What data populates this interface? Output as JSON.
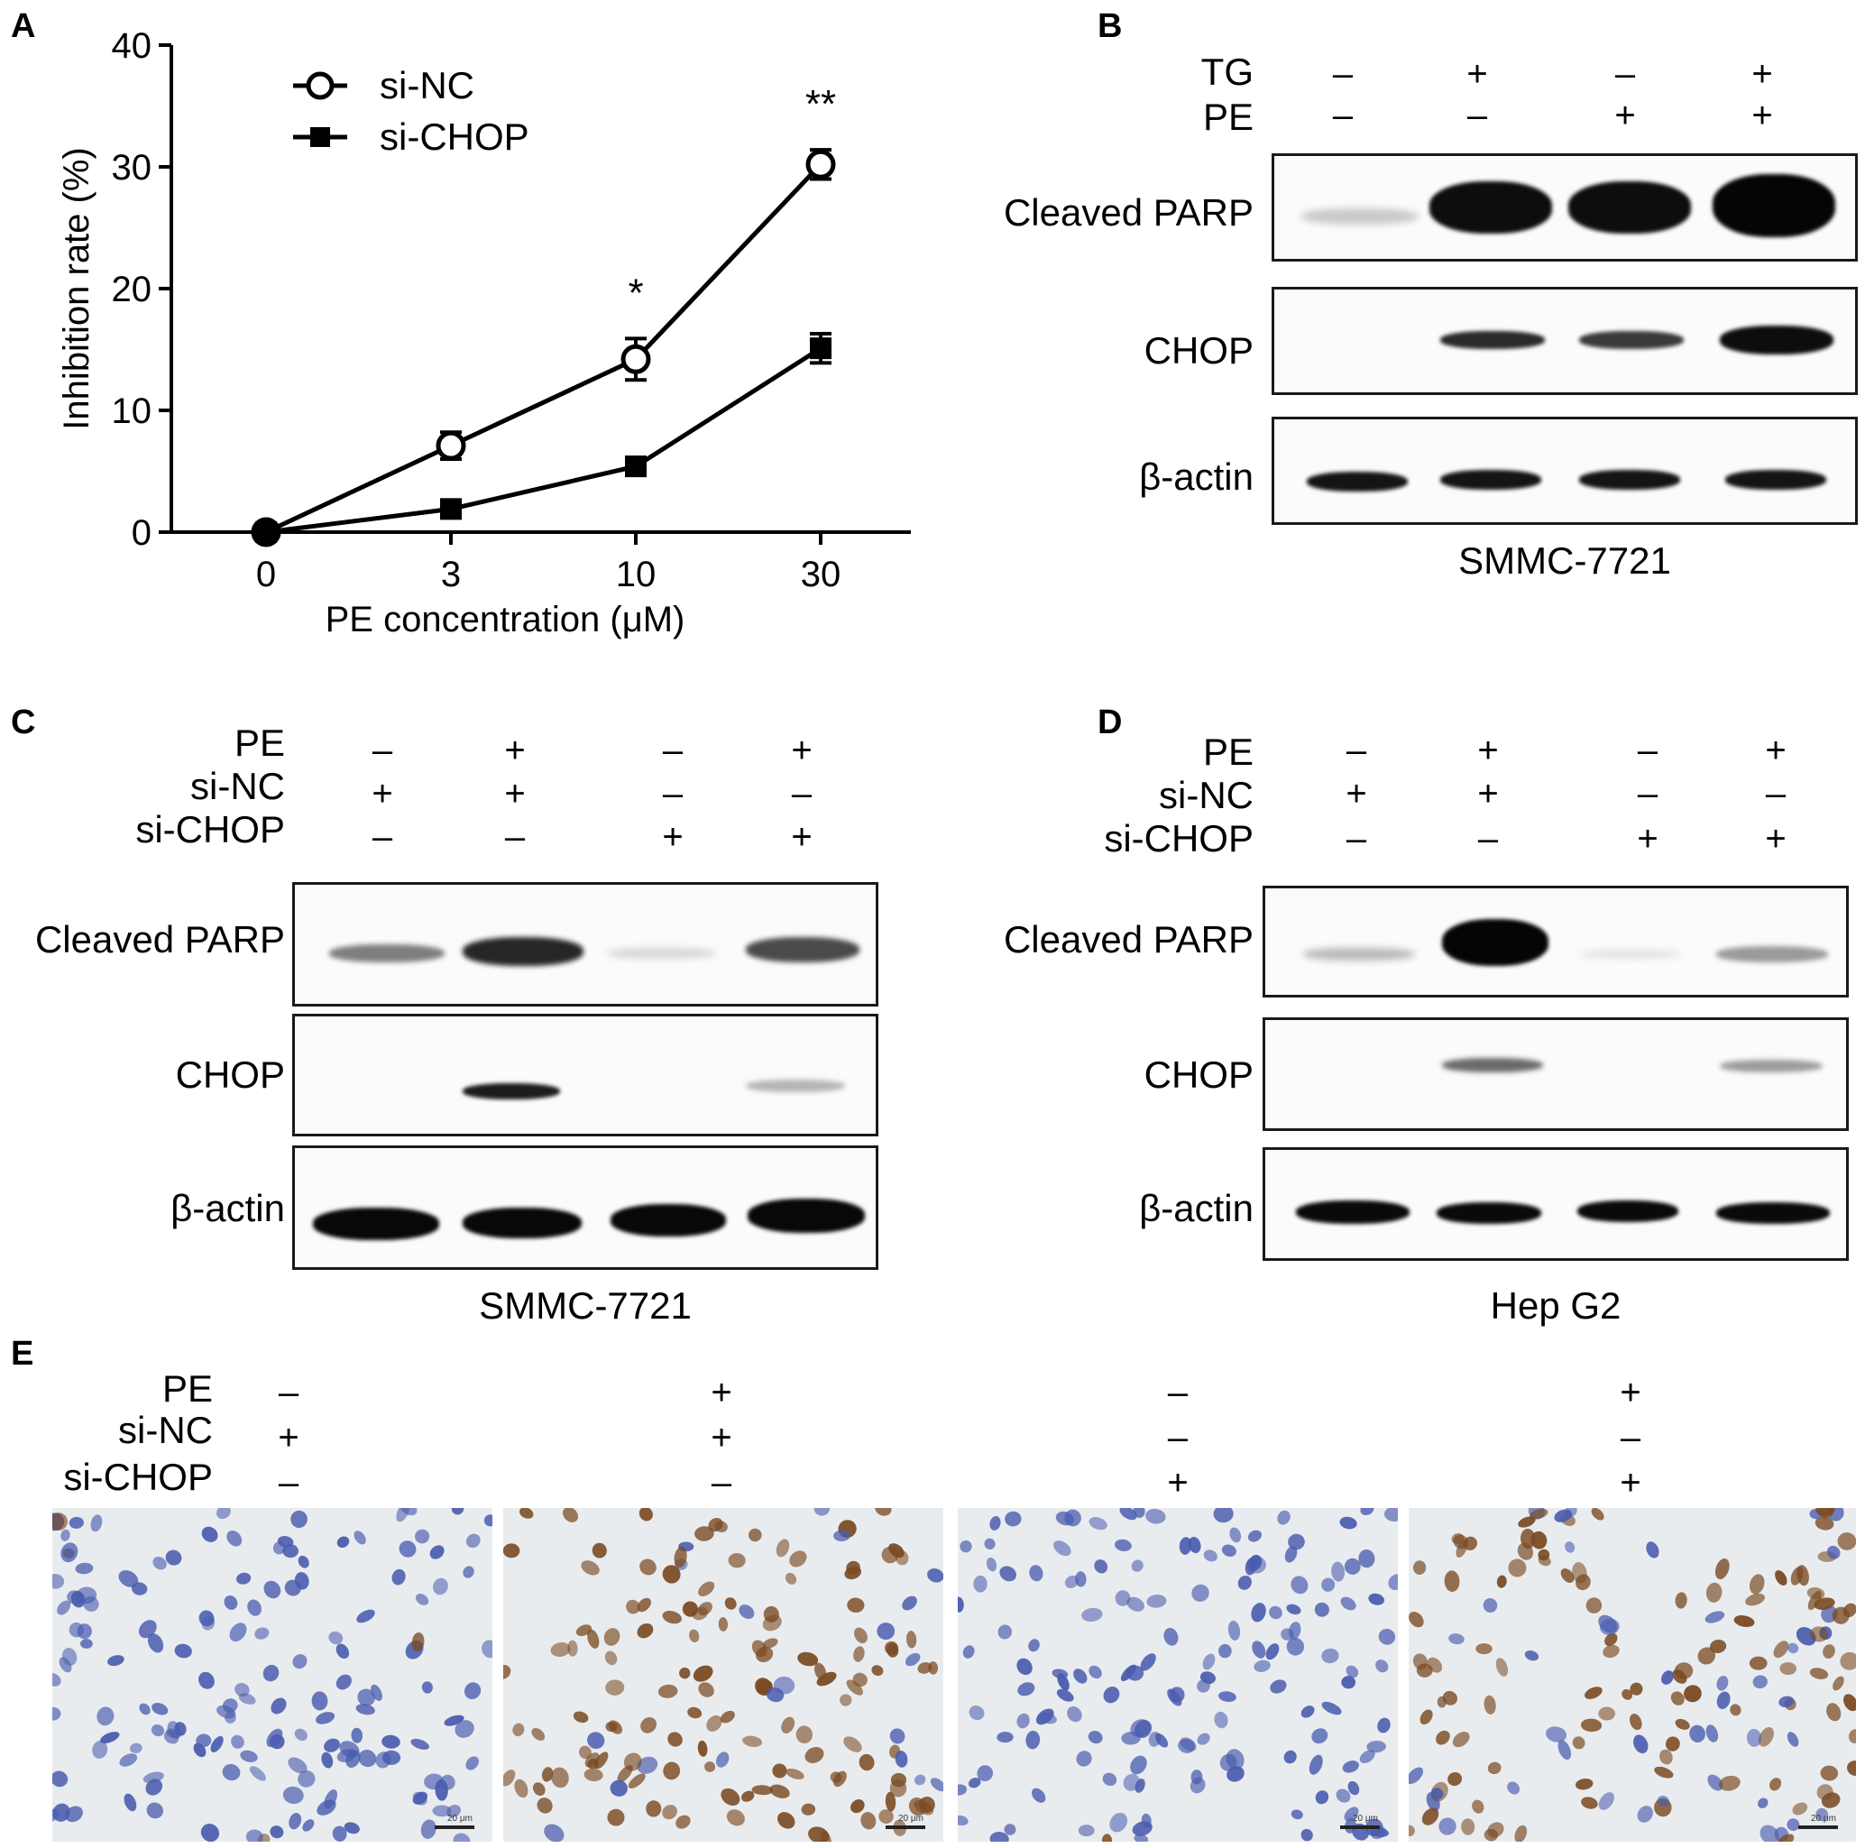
{
  "panels": {
    "A": {
      "letter": "A",
      "chart_data": {
        "type": "line",
        "x": [
          "0",
          "3",
          "10",
          "30"
        ],
        "xlabel": "PE concentration (μM)",
        "ylabel": "Inhibition rate (%)",
        "ylim": [
          0,
          40
        ],
        "yticks": [
          "0",
          "10",
          "20",
          "30",
          "40"
        ],
        "grid": false,
        "legend_position": "top-left",
        "series": [
          {
            "name": "si-NC",
            "marker": "open-circle",
            "values": [
              0,
              7.1,
              14.2,
              30.2
            ],
            "errors": [
              0.4,
              1.1,
              1.7,
              1.2
            ]
          },
          {
            "name": "si-CHOP",
            "marker": "filled-square",
            "values": [
              0,
              1.9,
              5.4,
              15.1
            ],
            "errors": [
              0.3,
              0.5,
              0.7,
              1.2
            ]
          }
        ],
        "annotations": [
          {
            "x": "10",
            "text": "*"
          },
          {
            "x": "30",
            "text": "**"
          }
        ]
      }
    },
    "B": {
      "letter": "B",
      "conditions": [
        {
          "label": "TG",
          "symbols": [
            "–",
            "+",
            "–",
            "+"
          ]
        },
        {
          "label": "PE",
          "symbols": [
            "–",
            "–",
            "+",
            "+"
          ]
        }
      ],
      "blots": [
        "Cleaved PARP",
        "CHOP",
        "β-actin"
      ],
      "cell_line": "SMMC-7721"
    },
    "C": {
      "letter": "C",
      "conditions": [
        {
          "label": "PE",
          "symbols": [
            "–",
            "+",
            "–",
            "+"
          ]
        },
        {
          "label": "si-NC",
          "symbols": [
            "+",
            "+",
            "–",
            "–"
          ]
        },
        {
          "label": "si-CHOP",
          "symbols": [
            "–",
            "–",
            "+",
            "+"
          ]
        }
      ],
      "blots": [
        "Cleaved PARP",
        "CHOP",
        "β-actin"
      ],
      "cell_line": "SMMC-7721"
    },
    "D": {
      "letter": "D",
      "conditions": [
        {
          "label": "PE",
          "symbols": [
            "–",
            "+",
            "–",
            "+"
          ]
        },
        {
          "label": "si-NC",
          "symbols": [
            "+",
            "+",
            "–",
            "–"
          ]
        },
        {
          "label": "si-CHOP",
          "symbols": [
            "–",
            "–",
            "+",
            "+"
          ]
        }
      ],
      "blots": [
        "Cleaved PARP",
        "CHOP",
        "β-actin"
      ],
      "cell_line": "Hep G2"
    },
    "E": {
      "letter": "E",
      "conditions": [
        {
          "label": "PE",
          "symbols": [
            "–",
            "+",
            "–",
            "+"
          ]
        },
        {
          "label": "si-NC",
          "symbols": [
            "+",
            "+",
            "–",
            "–"
          ]
        },
        {
          "label": "si-CHOP",
          "symbols": [
            "–",
            "–",
            "+",
            "+"
          ]
        }
      ],
      "scale_bar": "20 μm"
    }
  },
  "colors": {
    "stain_hematoxylin": "#4a5cae",
    "stain_dab": "#7a4a22",
    "background_tissue": "#e9ecef",
    "band": "#111111"
  }
}
